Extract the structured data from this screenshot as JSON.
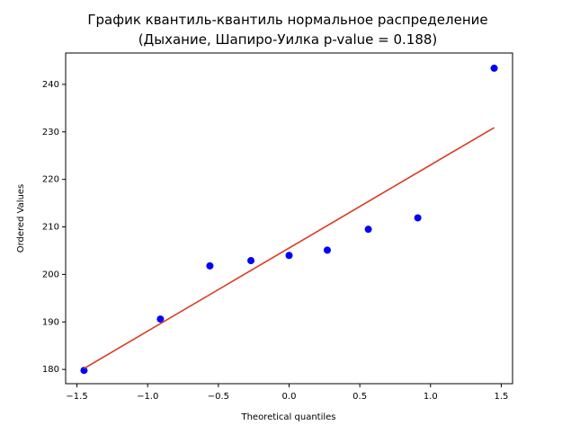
{
  "chart_data": {
    "type": "scatter",
    "title": "График квантиль-квантиль нормальное распределение\n(Дыхание, Шапиро-Уилка p-value = 0.188)",
    "xlabel": "Theoretical quantiles",
    "ylabel": "Ordered Values",
    "series": [
      {
        "type": "scatter",
        "color": "#0000ff",
        "x": [
          -1.45,
          -0.91,
          -0.56,
          -0.27,
          0,
          0.27,
          0.56,
          0.91,
          1.45
        ],
        "values": [
          179.8,
          190.6,
          201.8,
          202.9,
          204.0,
          205.1,
          209.5,
          211.9,
          243.4
        ]
      },
      {
        "type": "line",
        "color": "#dc3a22",
        "x": [
          -1.45,
          1.45
        ],
        "values": [
          180.2,
          230.9
        ]
      }
    ],
    "xlim": [
      -1.58,
      1.58
    ],
    "ylim": [
      177,
      246.6
    ],
    "xticks": [
      {
        "value": -1.5,
        "label": "−1.5"
      },
      {
        "value": -1.0,
        "label": "−1.0"
      },
      {
        "value": -0.5,
        "label": "−0.5"
      },
      {
        "value": 0,
        "label": "0.0"
      },
      0.5,
      {
        "value": 1.0,
        "label": "1.0"
      },
      1.5
    ],
    "yticks": [
      180,
      190,
      200,
      210,
      220,
      230,
      240
    ]
  }
}
